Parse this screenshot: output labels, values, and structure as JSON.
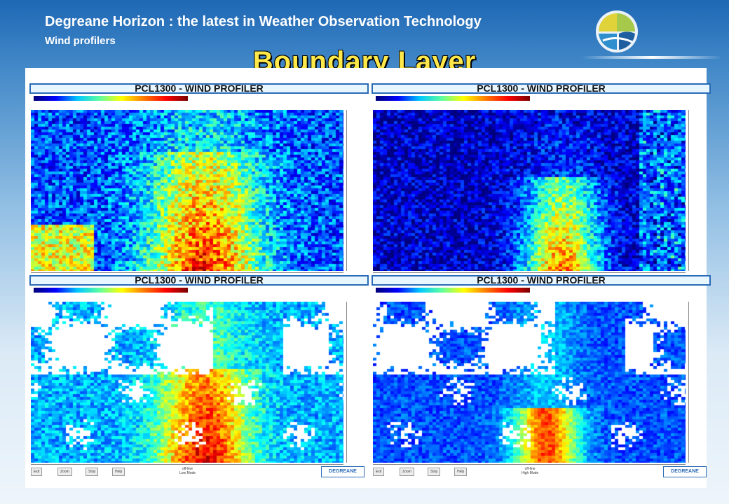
{
  "header": {
    "title": "Degreane Horizon : the latest in Weather Observation Technology",
    "subtitle": "Wind profilers"
  },
  "slide": {
    "title": "Boundary Layer"
  },
  "panels": [
    {
      "title": "PCL1300 - WIND PROFILER",
      "scheme": "hot"
    },
    {
      "title": "PCL1300 - WIND PROFILER",
      "scheme": "dark"
    },
    {
      "title": "PCL1300 - WIND PROFILER",
      "scheme": "holesHot",
      "mode": "Low Mode"
    },
    {
      "title": "PCL1300 - WIND PROFILER",
      "scheme": "holesBlue",
      "mode": "High Mode"
    }
  ],
  "footer": {
    "buttons": [
      "Exit",
      "Zoom",
      "Stop",
      "Help"
    ],
    "offline": "off-line",
    "brand": "DEGREANE"
  }
}
